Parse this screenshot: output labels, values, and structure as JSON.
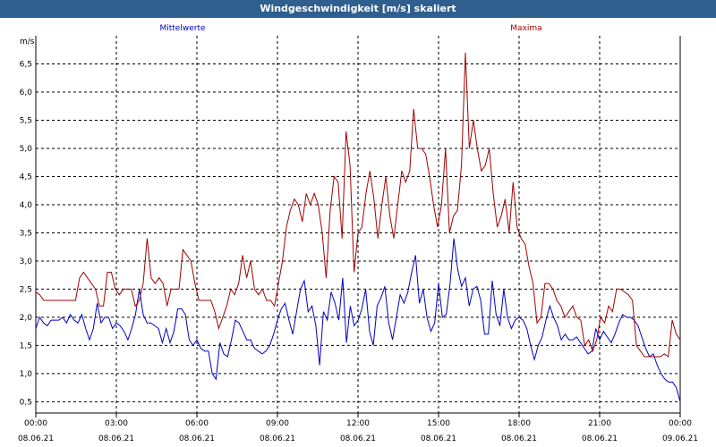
{
  "window": {
    "title": "Windgeschwindigkeit [m/s] skaliert"
  },
  "colors": {
    "titlebar": "#2f5f8f",
    "mean_series": "#0000c0",
    "max_series": "#a00000",
    "grid": "#000000"
  },
  "chart_data": {
    "type": "line",
    "title": "Windgeschwindigkeit [m/s] skaliert",
    "ylabel": "m/s",
    "ylim": [
      0.3,
      7.0
    ],
    "yticks": [
      "0,5",
      "1,0",
      "1,5",
      "2,0",
      "2,5",
      "3,0",
      "3,5",
      "4,0",
      "4,5",
      "5,0",
      "5,5",
      "6,0",
      "6,5"
    ],
    "yvalues": [
      0.5,
      1.0,
      1.5,
      2.0,
      2.5,
      3.0,
      3.5,
      4.0,
      4.5,
      5.0,
      5.5,
      6.0,
      6.5
    ],
    "xticks": [
      {
        "time": "00:00",
        "date": "08.06.21"
      },
      {
        "time": "03:00",
        "date": "08.06.21"
      },
      {
        "time": "06:00",
        "date": "08.06.21"
      },
      {
        "time": "09:00",
        "date": "08.06.21"
      },
      {
        "time": "12:00",
        "date": "08.06.21"
      },
      {
        "time": "15:00",
        "date": "08.06.21"
      },
      {
        "time": "18:00",
        "date": "08.06.21"
      },
      {
        "time": "21:00",
        "date": "08.06.21"
      },
      {
        "time": "00:00",
        "date": "09.06.21"
      }
    ],
    "xlim_hours": [
      0,
      24
    ],
    "grid": true,
    "series": [
      {
        "name": "Mittelwerte",
        "color": "#0000c0",
        "values": [
          1.8,
          2.0,
          1.9,
          1.85,
          1.95,
          1.95,
          1.95,
          2.0,
          1.9,
          2.05,
          1.95,
          1.9,
          2.05,
          1.8,
          1.6,
          1.8,
          2.25,
          1.9,
          2.0,
          2.0,
          1.8,
          1.9,
          1.85,
          1.75,
          1.6,
          1.8,
          2.05,
          2.5,
          2.05,
          1.9,
          1.9,
          1.85,
          1.8,
          1.55,
          1.8,
          1.55,
          1.75,
          2.15,
          2.15,
          2.05,
          1.6,
          1.5,
          1.6,
          1.45,
          1.4,
          1.4,
          1.0,
          0.9,
          1.55,
          1.35,
          1.3,
          1.6,
          1.95,
          1.9,
          1.75,
          1.6,
          1.6,
          1.45,
          1.4,
          1.35,
          1.4,
          1.5,
          1.7,
          1.95,
          2.15,
          2.25,
          1.95,
          1.7,
          2.1,
          2.5,
          2.65,
          2.1,
          2.2,
          1.85,
          1.15,
          2.1,
          1.95,
          2.45,
          2.25,
          1.95,
          2.7,
          1.55,
          2.2,
          1.85,
          1.95,
          2.15,
          2.5,
          1.75,
          1.5,
          2.2,
          2.35,
          2.55,
          1.9,
          1.6,
          2.0,
          2.4,
          2.25,
          2.45,
          2.8,
          3.1,
          2.25,
          2.5,
          2.0,
          1.75,
          1.9,
          2.6,
          2.0,
          2.05,
          2.6,
          3.4,
          2.85,
          2.55,
          2.7,
          2.2,
          2.5,
          2.55,
          2.3,
          1.7,
          1.7,
          2.65,
          2.05,
          1.85,
          2.5,
          2.0,
          1.8,
          1.95,
          2.0,
          1.95,
          1.8,
          1.5,
          1.25,
          1.5,
          1.65,
          1.95,
          2.2,
          2.0,
          1.85,
          1.6,
          1.7,
          1.6,
          1.6,
          1.65,
          1.55,
          1.45,
          1.35,
          1.4,
          1.8,
          1.6,
          1.75,
          1.65,
          1.55,
          1.7,
          1.9,
          2.05,
          2.0,
          2.0,
          1.95,
          1.85,
          1.65,
          1.45,
          1.3,
          1.35,
          1.15,
          1.0,
          0.9,
          0.85,
          0.85,
          0.75,
          0.5
        ]
      },
      {
        "name": "Maxima",
        "color": "#a00000",
        "values": [
          2.45,
          2.4,
          2.3,
          2.3,
          2.3,
          2.3,
          2.3,
          2.3,
          2.3,
          2.3,
          2.3,
          2.7,
          2.8,
          2.7,
          2.6,
          2.5,
          2.2,
          2.2,
          2.8,
          2.8,
          2.5,
          2.4,
          2.5,
          2.5,
          2.5,
          2.2,
          2.3,
          2.6,
          3.4,
          2.7,
          2.6,
          2.7,
          2.6,
          2.2,
          2.5,
          2.5,
          2.5,
          3.2,
          3.1,
          3.0,
          2.6,
          2.3,
          2.3,
          2.3,
          2.3,
          2.1,
          1.8,
          2.0,
          2.2,
          2.5,
          2.4,
          2.6,
          3.1,
          2.7,
          3.0,
          2.5,
          2.4,
          2.5,
          2.3,
          2.3,
          2.2,
          2.6,
          3.0,
          3.6,
          3.9,
          4.1,
          4.0,
          3.7,
          4.2,
          4.0,
          4.2,
          4.0,
          3.5,
          2.7,
          3.9,
          4.5,
          4.4,
          3.4,
          5.3,
          4.7,
          2.8,
          3.5,
          3.6,
          4.2,
          4.6,
          4.1,
          3.4,
          4.0,
          4.5,
          3.8,
          3.4,
          4.0,
          4.6,
          4.4,
          4.6,
          5.7,
          5.0,
          5.0,
          4.9,
          4.5,
          4.0,
          3.6,
          4.0,
          5.0,
          3.5,
          3.8,
          3.9,
          4.7,
          6.7,
          5.0,
          5.5,
          5.0,
          4.6,
          4.7,
          5.0,
          4.2,
          3.6,
          3.8,
          4.1,
          3.5,
          4.4,
          3.6,
          3.4,
          3.3,
          2.9,
          2.6,
          1.9,
          2.0,
          2.6,
          2.6,
          2.5,
          2.3,
          2.2,
          2.0,
          2.1,
          2.2,
          2.0,
          1.95,
          1.5,
          1.6,
          1.4,
          1.6,
          2.0,
          1.9,
          2.2,
          2.1,
          2.5,
          2.5,
          2.45,
          2.4,
          2.3,
          1.5,
          1.4,
          1.3,
          1.3,
          1.3,
          1.3,
          1.3,
          1.35,
          1.3,
          1.95,
          1.7,
          1.6
        ]
      }
    ]
  }
}
